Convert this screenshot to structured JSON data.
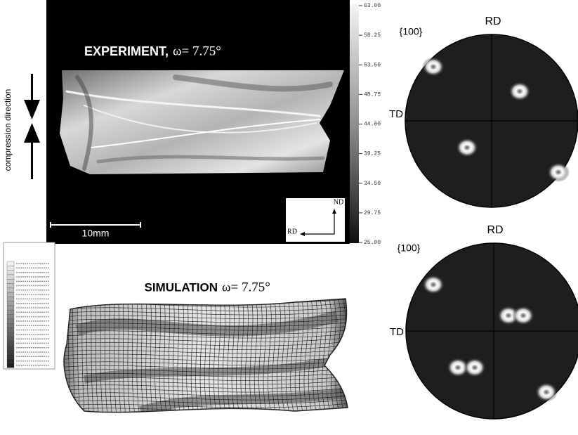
{
  "experiment": {
    "title": "EXPERIMENT,",
    "angle": "ω= 7.75°",
    "scale_bar": "10mm",
    "axes": {
      "vertical": "ND",
      "horizontal": "RD"
    },
    "colorbar_ticks": [
      "63.00",
      "58.25",
      "53.50",
      "48.75",
      "44.00",
      "39.25",
      "34.50",
      "29.75",
      "25.00"
    ]
  },
  "compression_label": "compression direction",
  "simulation": {
    "title": "SIMULATION",
    "angle": "ω= 7.75°"
  },
  "pole_figures": [
    {
      "plane": "{100}",
      "top": "RD",
      "left": "TD"
    },
    {
      "plane": "{100}",
      "top": "RD",
      "left": "TD"
    }
  ]
}
